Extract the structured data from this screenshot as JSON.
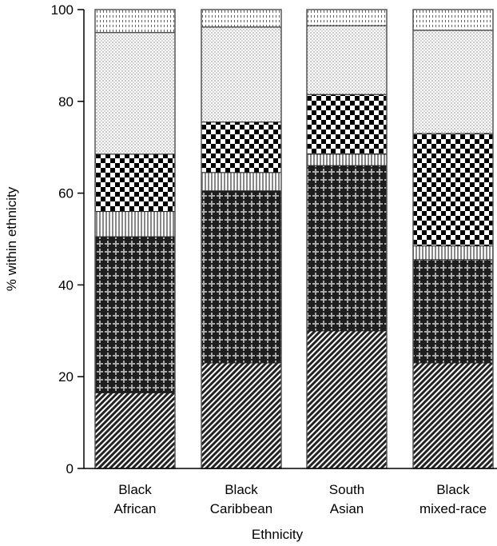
{
  "chart_data": {
    "type": "bar",
    "stacked": true,
    "xlabel": "Ethnicity",
    "ylabel": "% within ethnicity",
    "ylim": [
      0,
      100
    ],
    "yticks": [
      0,
      20,
      40,
      60,
      80,
      100
    ],
    "categories": [
      [
        "Black",
        "African"
      ],
      [
        "Black",
        "Caribbean"
      ],
      [
        "South",
        "Asian"
      ],
      [
        "Black",
        "mixed-race"
      ]
    ],
    "series": [
      {
        "pattern": "diagonal-hatch",
        "values": [
          16.5,
          23,
          30,
          23
        ]
      },
      {
        "pattern": "dark-cross",
        "values": [
          34,
          37.5,
          36,
          22.5
        ]
      },
      {
        "pattern": "vertical-lines",
        "values": [
          5.5,
          4,
          2.5,
          3
        ]
      },
      {
        "pattern": "checkerboard",
        "values": [
          12.5,
          11,
          13,
          24.5
        ]
      },
      {
        "pattern": "light-dots",
        "values": [
          26.5,
          20.7,
          15,
          22.5
        ]
      },
      {
        "pattern": "fine-dots",
        "values": [
          5,
          3.8,
          3.5,
          4.5
        ]
      }
    ]
  }
}
